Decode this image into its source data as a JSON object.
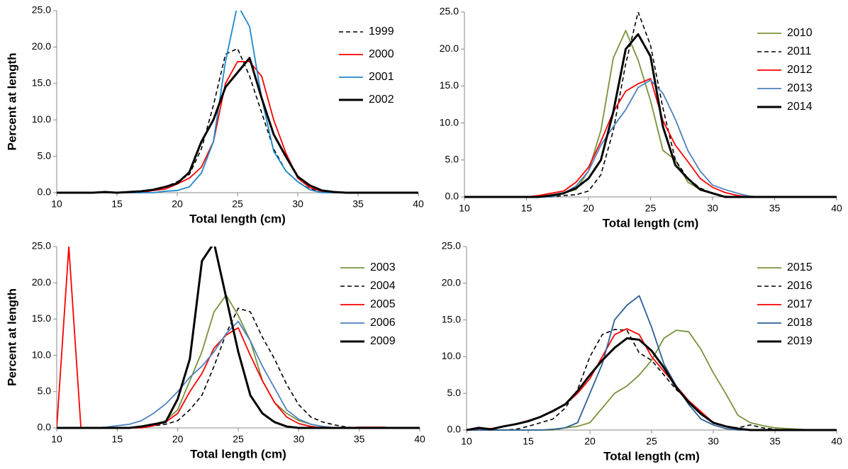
{
  "chart_data": [
    {
      "type": "line",
      "ylabel": "Percent at length",
      "xlabel": "Total length (cm)",
      "legend": "upper right",
      "xlim": [
        10,
        40
      ],
      "xticks": [
        10,
        15,
        20,
        25,
        30,
        35,
        40
      ],
      "ylim": [
        0,
        25
      ],
      "yticks": [
        {
          "value": 0,
          "label": "0.0"
        },
        {
          "value": 5,
          "label": "5.0"
        },
        {
          "value": 10,
          "label": "10.0"
        },
        {
          "value": 15,
          "label": "15.0"
        },
        {
          "value": 20,
          "label": "20.0"
        },
        {
          "value": 25,
          "label": "25.0"
        }
      ],
      "x": [
        10,
        11,
        12,
        13,
        14,
        15,
        16,
        17,
        18,
        19,
        20,
        21,
        22,
        23,
        24,
        25,
        26,
        27,
        28,
        29,
        30,
        31,
        32,
        33,
        34,
        35,
        36,
        37,
        38,
        39,
        40
      ],
      "series": [
        {
          "name": "1999",
          "color": "#000000",
          "style": "dashed",
          "width": 1.6,
          "values": [
            0,
            0,
            0,
            0,
            0,
            0,
            0.1,
            0.2,
            0.4,
            0.8,
            1.5,
            2.5,
            6,
            12,
            19,
            19.8,
            16,
            11,
            6,
            3,
            1.5,
            0.5,
            0.2,
            0,
            0,
            0,
            0,
            0,
            0,
            0,
            0
          ]
        },
        {
          "name": "2000",
          "color": "#ff0000",
          "style": "solid",
          "width": 1.8,
          "values": [
            0,
            0,
            0,
            0,
            0,
            0,
            0,
            0,
            0.3,
            0.5,
            1.2,
            2,
            3.5,
            7,
            15,
            18,
            18,
            16,
            10,
            5.5,
            2,
            0.7,
            0.2,
            0,
            0,
            0,
            0,
            0,
            0,
            0,
            0
          ]
        },
        {
          "name": "2001",
          "color": "#1f88c9",
          "style": "solid",
          "width": 1.8,
          "values": [
            0,
            0,
            0,
            0,
            0,
            0,
            0,
            0,
            0,
            0.2,
            0.3,
            0.8,
            2.7,
            7,
            18,
            25.8,
            22.8,
            13,
            5.7,
            3,
            1.5,
            0.4,
            0,
            0,
            0,
            0,
            0,
            0,
            0,
            0,
            0
          ]
        },
        {
          "name": "2002",
          "color": "#000000",
          "style": "solid",
          "width": 3,
          "values": [
            0,
            0,
            0,
            0,
            0.1,
            0,
            0.1,
            0.2,
            0.4,
            0.8,
            1.3,
            2.8,
            7,
            10,
            14.5,
            16.5,
            18.5,
            13,
            8,
            5,
            2.2,
            1,
            0.3,
            0.1,
            0,
            0,
            0,
            0,
            0,
            0,
            0
          ]
        }
      ]
    },
    {
      "type": "line",
      "xlabel": "Total length (cm)",
      "legend": "upper right",
      "xlim": [
        10,
        40
      ],
      "xticks": [
        10,
        15,
        20,
        25,
        30,
        35,
        40
      ],
      "ylim": [
        0,
        25
      ],
      "yticks": [
        {
          "value": 0,
          "label": "0.0"
        },
        {
          "value": 5,
          "label": "5.0"
        },
        {
          "value": 10,
          "label": "10.0"
        },
        {
          "value": 15,
          "label": "15.0"
        },
        {
          "value": 20,
          "label": "20.0"
        },
        {
          "value": 25,
          "label": "25.0"
        }
      ],
      "x": [
        10,
        11,
        12,
        13,
        14,
        15,
        16,
        17,
        18,
        19,
        20,
        21,
        22,
        23,
        24,
        25,
        26,
        27,
        28,
        29,
        30,
        31,
        32,
        33,
        34,
        35,
        36,
        37,
        38,
        39,
        40
      ],
      "series": [
        {
          "name": "2010",
          "color": "#77933c",
          "style": "solid",
          "width": 1.8,
          "values": [
            0,
            0,
            0,
            0,
            0,
            0,
            0,
            0.3,
            0.5,
            1,
            3.5,
            9,
            18.8,
            22.5,
            18.5,
            13,
            6.3,
            5,
            2,
            1,
            0.5,
            0.1,
            0,
            0,
            0,
            0,
            0,
            0,
            0,
            0,
            0
          ]
        },
        {
          "name": "2011",
          "color": "#000000",
          "style": "dashed",
          "width": 1.6,
          "values": [
            0,
            0,
            0,
            0,
            0,
            0,
            0,
            0,
            0.2,
            0.3,
            0.8,
            3,
            9,
            18,
            25,
            20.5,
            12,
            5,
            2.5,
            1.2,
            0.5,
            0,
            0,
            0,
            0,
            0,
            0,
            0,
            0,
            0,
            0
          ]
        },
        {
          "name": "2012",
          "color": "#ff0000",
          "style": "solid",
          "width": 1.8,
          "values": [
            0,
            0,
            0,
            0,
            0,
            0,
            0.2,
            0.5,
            0.8,
            2,
            4,
            7.5,
            11.5,
            14.3,
            15.3,
            16,
            10.3,
            7,
            4.8,
            2.5,
            1.3,
            0.6,
            0.2,
            0,
            0,
            0,
            0,
            0,
            0,
            0,
            0
          ]
        },
        {
          "name": "2013",
          "color": "#4f81bd",
          "style": "solid",
          "width": 1.8,
          "values": [
            0,
            0,
            0,
            0,
            0,
            0,
            0,
            0,
            0.5,
            1.5,
            3.5,
            7,
            9.5,
            11.8,
            14.8,
            15.8,
            14,
            10.5,
            6.3,
            3.5,
            1.6,
            1,
            0.5,
            0.1,
            0,
            0,
            0,
            0,
            0,
            0,
            0
          ]
        },
        {
          "name": "2014",
          "color": "#000000",
          "style": "solid",
          "width": 3,
          "values": [
            0,
            0,
            0,
            0,
            0,
            0,
            0,
            0.2,
            0.5,
            1.2,
            2.5,
            5,
            11.5,
            20,
            22,
            19,
            9.5,
            4.3,
            2.5,
            1,
            0.5,
            0,
            0,
            0,
            0,
            0,
            0,
            0,
            0,
            0,
            0
          ]
        }
      ]
    },
    {
      "type": "line",
      "ylabel": "Percent at length",
      "xlabel": "Total length (cm)",
      "legend": "upper right",
      "xlim": [
        10,
        40
      ],
      "xticks": [
        10,
        15,
        20,
        25,
        30,
        35,
        40
      ],
      "ylim": [
        0,
        25
      ],
      "yticks": [
        {
          "value": 0,
          "label": "0.0"
        },
        {
          "value": 5,
          "label": "5.0"
        },
        {
          "value": 10,
          "label": "10.0"
        },
        {
          "value": 15,
          "label": "15.0"
        },
        {
          "value": 20,
          "label": "20.0"
        },
        {
          "value": 25,
          "label": "25.0"
        }
      ],
      "x": [
        10,
        11,
        12,
        13,
        14,
        15,
        16,
        17,
        18,
        19,
        20,
        21,
        22,
        23,
        24,
        25,
        26,
        27,
        28,
        29,
        30,
        31,
        32,
        33,
        34,
        35,
        36,
        37,
        38,
        39,
        40
      ],
      "series": [
        {
          "name": "2003",
          "color": "#77933c",
          "style": "solid",
          "width": 1.8,
          "values": [
            0,
            0,
            0,
            0,
            0,
            0,
            0,
            0.2,
            0.5,
            1,
            2.5,
            6.5,
            10.5,
            16,
            18.3,
            15.5,
            12,
            6.5,
            3.5,
            2,
            1,
            0.5,
            0.2,
            0,
            0,
            0,
            0,
            0,
            0,
            0,
            0
          ]
        },
        {
          "name": "2004",
          "color": "#000000",
          "style": "dashed",
          "width": 1.6,
          "values": [
            0,
            0,
            0,
            0,
            0,
            0,
            0,
            0.1,
            0.3,
            0.5,
            1,
            2.5,
            4.5,
            8.5,
            13,
            16.5,
            16,
            12.5,
            9.5,
            6,
            3.2,
            1.5,
            0.8,
            0.4,
            0.1,
            0,
            0,
            0,
            0,
            0,
            0
          ]
        },
        {
          "name": "2005",
          "color": "#ff0000",
          "style": "solid",
          "width": 1.8,
          "values": [
            0,
            25,
            0,
            0,
            0,
            0,
            0,
            0,
            0.3,
            0.8,
            2,
            5,
            7.5,
            11,
            12.8,
            13.8,
            10,
            6.5,
            3.5,
            1.5,
            0.6,
            0.2,
            0,
            0,
            0,
            0.1,
            0.1,
            0.1,
            0,
            0,
            0
          ]
        },
        {
          "name": "2006",
          "color": "#4f81bd",
          "style": "solid",
          "width": 1.8,
          "values": [
            0,
            0,
            0,
            0,
            0.1,
            0.3,
            0.5,
            1,
            2,
            3.3,
            5,
            7,
            8.5,
            10.5,
            13,
            14.7,
            12,
            8.5,
            5.5,
            2.5,
            1.2,
            0.5,
            0.2,
            0,
            0,
            0,
            0,
            0,
            0,
            0,
            0
          ]
        },
        {
          "name": "2009",
          "color": "#000000",
          "style": "solid",
          "width": 3,
          "values": [
            0,
            0,
            0,
            0,
            0,
            0,
            0,
            0.2,
            0.5,
            0.8,
            4,
            9.5,
            23,
            25.5,
            18,
            10.5,
            4.5,
            2,
            0.8,
            0.2,
            0,
            0,
            0,
            0,
            0,
            0,
            0,
            0,
            0,
            0,
            0
          ]
        }
      ]
    },
    {
      "type": "line",
      "xlabel": "Total length (cm)",
      "legend": "upper right",
      "xlim": [
        10,
        40
      ],
      "xticks": [
        10,
        15,
        20,
        25,
        30,
        35,
        40
      ],
      "ylim": [
        0,
        25
      ],
      "yticks": [
        {
          "value": 0,
          "label": "0.0"
        },
        {
          "value": 5,
          "label": "5.0"
        },
        {
          "value": 10,
          "label": "10.0"
        },
        {
          "value": 15,
          "label": "15.0"
        },
        {
          "value": 20,
          "label": "20.0"
        },
        {
          "value": 25,
          "label": "25.0"
        }
      ],
      "x": [
        10,
        11,
        12,
        13,
        14,
        15,
        16,
        17,
        18,
        19,
        20,
        21,
        22,
        23,
        24,
        25,
        26,
        27,
        28,
        29,
        30,
        31,
        32,
        33,
        34,
        35,
        36,
        37,
        38,
        39,
        40
      ],
      "series": [
        {
          "name": "2015",
          "color": "#77933c",
          "style": "solid",
          "width": 1.8,
          "values": [
            0,
            0,
            0,
            0,
            0,
            0,
            0,
            0,
            0.3,
            0.5,
            1,
            3,
            5,
            6,
            7.5,
            9.5,
            12.5,
            13.6,
            13.4,
            11,
            7.8,
            5,
            2,
            1,
            0.6,
            0.3,
            0.2,
            0.1,
            0,
            0,
            0
          ]
        },
        {
          "name": "2016",
          "color": "#000000",
          "style": "dashed",
          "width": 1.6,
          "values": [
            0,
            0,
            0,
            0,
            0.1,
            0.5,
            1,
            1.5,
            3,
            5.5,
            10,
            13,
            13.7,
            13.6,
            10.5,
            9.5,
            7.5,
            5.5,
            4,
            2.5,
            1,
            0.5,
            0.3,
            0.7,
            0.3,
            0.1,
            0,
            0,
            0,
            0,
            0
          ]
        },
        {
          "name": "2017",
          "color": "#ff0000",
          "style": "solid",
          "width": 1.8,
          "values": [
            0,
            0.2,
            0.2,
            0.5,
            0.8,
            1.3,
            1.8,
            2.5,
            3.5,
            5,
            7,
            10,
            13,
            13.8,
            13,
            10,
            8,
            6,
            4,
            2.5,
            1,
            0.5,
            0.2,
            0,
            0,
            0,
            0,
            0,
            0,
            0,
            0
          ]
        },
        {
          "name": "2018",
          "color": "#2c5f94",
          "style": "solid",
          "width": 1.8,
          "values": [
            0,
            0,
            0,
            0,
            0,
            0,
            0,
            0.1,
            0.3,
            1,
            5,
            9,
            15,
            17,
            18.3,
            14,
            9,
            6,
            3.5,
            1.5,
            0.7,
            0.2,
            0,
            0,
            0,
            0,
            0,
            0,
            0,
            0,
            0
          ]
        },
        {
          "name": "2019",
          "color": "#000000",
          "style": "solid",
          "width": 3,
          "values": [
            0,
            0.3,
            0.1,
            0.5,
            0.8,
            1.2,
            1.8,
            2.6,
            3.5,
            5.3,
            7.5,
            9.5,
            11.2,
            12.5,
            12.3,
            10.8,
            8.5,
            5.8,
            3.8,
            2.2,
            1,
            0.5,
            0.2,
            0,
            0,
            0,
            0,
            0,
            0,
            0,
            0
          ]
        }
      ]
    }
  ]
}
